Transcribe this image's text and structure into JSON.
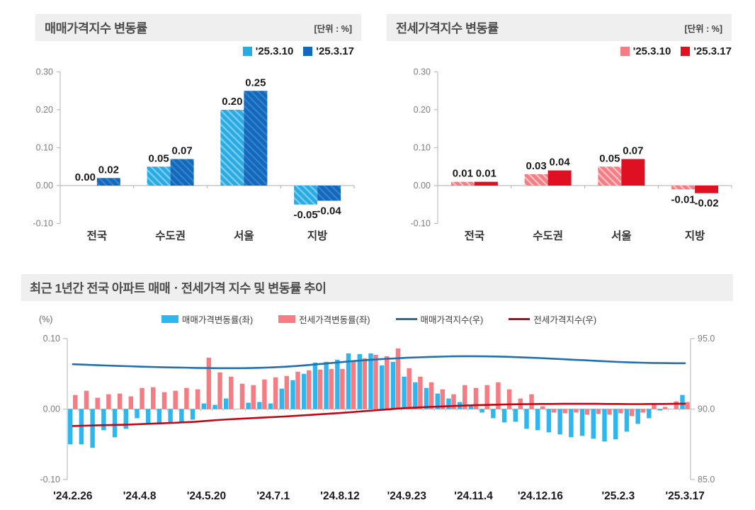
{
  "chart_data": [
    {
      "id": "sale-bar",
      "type": "bar",
      "title": "매매가격지수 변동률",
      "unit": "[단위 : %]",
      "categories": [
        "전국",
        "수도권",
        "서울",
        "지방"
      ],
      "series": [
        {
          "name": "'25.3.10",
          "color": "#29abe2",
          "hatched": true,
          "hatch_stripe": "rgba(255,255,255,0.38)",
          "values": [
            0.0,
            0.05,
            0.2,
            -0.05
          ]
        },
        {
          "name": "'25.3.17",
          "color": "#1169bd",
          "hatched": true,
          "hatch_stripe": "rgba(255,255,255,0.16)",
          "values": [
            0.02,
            0.07,
            0.25,
            -0.04
          ]
        }
      ],
      "ylim": [
        -0.1,
        0.3
      ],
      "yticks": [
        0.3,
        0.2,
        0.1,
        0.0,
        -0.1
      ],
      "grid": false,
      "legend_position": "top-right"
    },
    {
      "id": "jeonse-bar",
      "type": "bar",
      "title": "전세가격지수 변동률",
      "unit": "[단위 : %]",
      "categories": [
        "전국",
        "수도권",
        "서울",
        "지방"
      ],
      "series": [
        {
          "name": "'25.3.10",
          "color": "#f27d84",
          "hatched": true,
          "hatch_stripe": "rgba(255,255,255,0.5)",
          "values": [
            0.01,
            0.03,
            0.05,
            -0.01
          ]
        },
        {
          "name": "'25.3.17",
          "color": "#de1021",
          "hatched": false,
          "hatch_stripe": "",
          "values": [
            0.01,
            0.04,
            0.07,
            -0.02
          ]
        }
      ],
      "ylim": [
        -0.1,
        0.3
      ],
      "yticks": [
        0.3,
        0.2,
        0.1,
        0.0,
        -0.1
      ],
      "grid": false,
      "legend_position": "top-right"
    },
    {
      "id": "trend-combo",
      "type": "combo",
      "title": "최근 1년간 전국 아파트 매매ㆍ전세가격 지수 및 변동률 추이",
      "n_points": 56,
      "x_labels": [
        "'24.2.26",
        "'24.4.8",
        "'24.5.20",
        "'24.7.1",
        "'24.8.12",
        "'24.9.23",
        "'24.11.4",
        "'24.12.16",
        "'25.2.3",
        "'25.3.17"
      ],
      "x_label_indices": [
        0,
        6,
        12,
        18,
        24,
        30,
        36,
        42,
        49,
        55
      ],
      "left_axis": {
        "unit": "(%)",
        "ticks": [
          0.1,
          0.0,
          -0.1
        ],
        "lim": [
          -0.1,
          0.1
        ]
      },
      "right_axis": {
        "ticks": [
          95.0,
          90.0,
          85.0
        ],
        "lim": [
          85.0,
          95.0
        ]
      },
      "bar_series": [
        {
          "name": "매매가격변동률(좌)",
          "color": "#2db7ee",
          "values": [
            -0.05,
            -0.05,
            -0.055,
            -0.03,
            -0.04,
            -0.028,
            -0.013,
            -0.02,
            -0.02,
            -0.019,
            -0.019,
            -0.015,
            0.008,
            0.006,
            0.015,
            0.0,
            0.009,
            0.01,
            0.008,
            0.029,
            0.041,
            0.05,
            0.066,
            0.067,
            0.07,
            0.079,
            0.078,
            0.079,
            0.062,
            0.067,
            0.046,
            0.038,
            0.03,
            0.022,
            0.015,
            0.01,
            0.005,
            -0.005,
            -0.013,
            -0.019,
            -0.018,
            -0.028,
            -0.03,
            -0.033,
            -0.036,
            -0.04,
            -0.038,
            -0.042,
            -0.046,
            -0.043,
            -0.032,
            -0.021,
            -0.013,
            -0.002,
            0.0,
            0.02
          ]
        },
        {
          "name": "전세가격변동률(좌)",
          "color": "#f47c82",
          "values": [
            0.02,
            0.026,
            0.016,
            0.021,
            0.022,
            0.018,
            0.03,
            0.031,
            0.024,
            0.026,
            0.03,
            0.028,
            0.073,
            0.052,
            0.046,
            0.036,
            0.034,
            0.042,
            0.045,
            0.047,
            0.053,
            0.055,
            0.056,
            0.057,
            0.057,
            0.068,
            0.072,
            0.077,
            0.075,
            0.086,
            0.058,
            0.046,
            0.038,
            0.028,
            0.021,
            0.034,
            0.03,
            0.034,
            0.038,
            0.028,
            0.015,
            0.021,
            0.004,
            -0.005,
            -0.006,
            -0.005,
            -0.008,
            -0.007,
            -0.008,
            -0.006,
            -0.01,
            -0.005,
            0.007,
            0.003,
            0.011,
            0.01
          ]
        }
      ],
      "line_series": [
        {
          "name": "매매가격지수(우)",
          "color": "#2170ae",
          "values": [
            93.18,
            93.15,
            93.12,
            93.09,
            93.06,
            93.04,
            93.01,
            92.99,
            92.97,
            92.95,
            92.94,
            92.92,
            92.91,
            92.9,
            92.9,
            92.9,
            92.91,
            92.93,
            92.96,
            93.0,
            93.05,
            93.11,
            93.18,
            93.25,
            93.32,
            93.39,
            93.45,
            93.51,
            93.56,
            93.6,
            93.64,
            93.67,
            93.7,
            93.72,
            93.74,
            93.75,
            93.75,
            93.74,
            93.73,
            93.71,
            93.68,
            93.65,
            93.62,
            93.58,
            93.54,
            93.5,
            93.46,
            93.42,
            93.38,
            93.34,
            93.31,
            93.29,
            93.27,
            93.26,
            93.25,
            93.25
          ]
        },
        {
          "name": "전세가격지수(우)",
          "color": "#c00713",
          "values": [
            88.8,
            88.82,
            88.84,
            88.86,
            88.88,
            88.9,
            88.93,
            88.96,
            88.99,
            89.02,
            89.06,
            89.1,
            89.16,
            89.22,
            89.27,
            89.31,
            89.35,
            89.39,
            89.43,
            89.47,
            89.52,
            89.57,
            89.62,
            89.67,
            89.72,
            89.78,
            89.84,
            89.9,
            89.96,
            90.02,
            90.07,
            90.11,
            90.15,
            90.18,
            90.21,
            90.24,
            90.27,
            90.29,
            90.31,
            90.33,
            90.34,
            90.35,
            90.36,
            90.36,
            90.37,
            90.37,
            90.37,
            90.37,
            90.36,
            90.36,
            90.35,
            90.35,
            90.36,
            90.36,
            90.37,
            90.38
          ]
        }
      ]
    }
  ]
}
